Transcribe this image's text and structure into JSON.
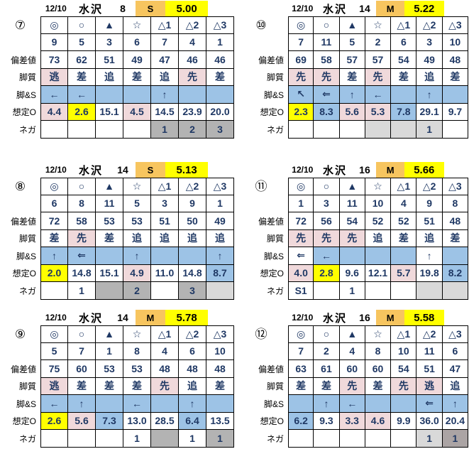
{
  "colors": {
    "class_cell_orange": "#F7C55F",
    "value_cell_yellow": "#FFFF00",
    "front_runner_pink": "#F0D9DB",
    "arrow_row_blue": "#9DC3E6",
    "nega_gray_medium": "#B3B3B3",
    "nega_gray_light": "#D9D9D9",
    "nega_gray_dark": "#ABA4A4",
    "odds_text_navy": "#1F3864"
  },
  "row_labels": [
    "偏差値",
    "脚質",
    "脚&S",
    "想定O",
    "ネガ"
  ],
  "symbols": [
    "◎",
    "○",
    "▲",
    "☆",
    "△1",
    "△2",
    "△3"
  ],
  "blocks": [
    {
      "badge": "⑦",
      "header": {
        "date": "12/10",
        "track": "水沢",
        "race": "8",
        "class": "S",
        "value": "5.00"
      },
      "num": [
        "9",
        "5",
        "3",
        "6",
        "7",
        "4",
        "1"
      ],
      "dev": [
        "73",
        "62",
        "51",
        "49",
        "47",
        "46",
        "46"
      ],
      "leg": [
        {
          "t": "逃",
          "bg": "pink"
        },
        {
          "t": "差",
          "bg": ""
        },
        {
          "t": "追",
          "bg": ""
        },
        {
          "t": "差",
          "bg": ""
        },
        {
          "t": "追",
          "bg": ""
        },
        {
          "t": "先",
          "bg": "pink"
        },
        {
          "t": "差",
          "bg": ""
        }
      ],
      "arr": [
        {
          "t": "←",
          "bg": "blue"
        },
        {
          "t": "←",
          "bg": "blue"
        },
        {
          "t": "",
          "bg": "blue"
        },
        {
          "t": "",
          "bg": "blue"
        },
        {
          "t": "↑",
          "bg": "blue"
        },
        {
          "t": "",
          "bg": "blue"
        },
        {
          "t": "",
          "bg": "blue"
        }
      ],
      "odds": [
        {
          "t": "4.4",
          "bg": "pink"
        },
        {
          "t": "2.6",
          "bg": "yellow"
        },
        {
          "t": "15.1",
          "bg": ""
        },
        {
          "t": "4.5",
          "bg": "pink"
        },
        {
          "t": "14.5",
          "bg": ""
        },
        {
          "t": "23.9",
          "bg": ""
        },
        {
          "t": "20.0",
          "bg": ""
        }
      ],
      "nega": [
        {
          "t": "",
          "bg": ""
        },
        {
          "t": "",
          "bg": ""
        },
        {
          "t": "",
          "bg": ""
        },
        {
          "t": "",
          "bg": ""
        },
        {
          "t": "1",
          "bg": "gm"
        },
        {
          "t": "2",
          "bg": "gm"
        },
        {
          "t": "3",
          "bg": "gm"
        }
      ]
    },
    {
      "badge": "⑩",
      "header": {
        "date": "12/10",
        "track": "水沢",
        "race": "14",
        "class": "M",
        "value": "5.22"
      },
      "num": [
        "7",
        "11",
        "5",
        "2",
        "6",
        "3",
        "10"
      ],
      "dev": [
        "69",
        "58",
        "57",
        "57",
        "54",
        "49",
        "48"
      ],
      "leg": [
        {
          "t": "先",
          "bg": "pink"
        },
        {
          "t": "先",
          "bg": "pink"
        },
        {
          "t": "差",
          "bg": ""
        },
        {
          "t": "先",
          "bg": "pink"
        },
        {
          "t": "差",
          "bg": ""
        },
        {
          "t": "追",
          "bg": ""
        },
        {
          "t": "差",
          "bg": ""
        }
      ],
      "arr": [
        {
          "t": "↖",
          "bg": "blue"
        },
        {
          "t": "⇐",
          "bg": "blue"
        },
        {
          "t": "↑",
          "bg": "blue"
        },
        {
          "t": "←",
          "bg": "blue"
        },
        {
          "t": "",
          "bg": "blue"
        },
        {
          "t": "↑",
          "bg": "blue"
        },
        {
          "t": "",
          "bg": "blue"
        }
      ],
      "odds": [
        {
          "t": "2.3",
          "bg": "yellow"
        },
        {
          "t": "8.3",
          "bg": "blue"
        },
        {
          "t": "5.6",
          "bg": "pink"
        },
        {
          "t": "5.3",
          "bg": "pink"
        },
        {
          "t": "7.8",
          "bg": "blue"
        },
        {
          "t": "29.1",
          "bg": ""
        },
        {
          "t": "9.7",
          "bg": ""
        }
      ],
      "nega": [
        {
          "t": "",
          "bg": ""
        },
        {
          "t": "",
          "bg": ""
        },
        {
          "t": "",
          "bg": ""
        },
        {
          "t": "",
          "bg": "gl"
        },
        {
          "t": "",
          "bg": "gl"
        },
        {
          "t": "1",
          "bg": "gl"
        },
        {
          "t": "",
          "bg": ""
        }
      ]
    },
    {
      "badge": "⑧",
      "header": {
        "date": "12/10",
        "track": "水沢",
        "race": "14",
        "class": "S",
        "value": "5.13"
      },
      "num": [
        "6",
        "8",
        "11",
        "5",
        "3",
        "9",
        "1"
      ],
      "dev": [
        "72",
        "58",
        "53",
        "53",
        "51",
        "50",
        "49"
      ],
      "leg": [
        {
          "t": "差",
          "bg": ""
        },
        {
          "t": "先",
          "bg": "pink"
        },
        {
          "t": "差",
          "bg": ""
        },
        {
          "t": "追",
          "bg": ""
        },
        {
          "t": "追",
          "bg": ""
        },
        {
          "t": "追",
          "bg": ""
        },
        {
          "t": "追",
          "bg": ""
        }
      ],
      "arr": [
        {
          "t": "↑",
          "bg": "blue"
        },
        {
          "t": "⇐",
          "bg": "blue"
        },
        {
          "t": "",
          "bg": "blue"
        },
        {
          "t": "↑",
          "bg": "blue"
        },
        {
          "t": "",
          "bg": "blue"
        },
        {
          "t": "",
          "bg": "blue"
        },
        {
          "t": "↑",
          "bg": "blue"
        }
      ],
      "odds": [
        {
          "t": "2.0",
          "bg": "yellow"
        },
        {
          "t": "14.8",
          "bg": ""
        },
        {
          "t": "15.1",
          "bg": ""
        },
        {
          "t": "4.9",
          "bg": "pink"
        },
        {
          "t": "11.0",
          "bg": ""
        },
        {
          "t": "14.8",
          "bg": ""
        },
        {
          "t": "8.7",
          "bg": "blue"
        }
      ],
      "nega": [
        {
          "t": "",
          "bg": ""
        },
        {
          "t": "1",
          "bg": ""
        },
        {
          "t": "",
          "bg": "gm"
        },
        {
          "t": "2",
          "bg": "gm"
        },
        {
          "t": "",
          "bg": ""
        },
        {
          "t": "3",
          "bg": "gm"
        },
        {
          "t": "",
          "bg": "gl"
        }
      ]
    },
    {
      "badge": "⑪",
      "header": {
        "date": "12/10",
        "track": "水沢",
        "race": "16",
        "class": "M",
        "value": "5.66"
      },
      "num": [
        "1",
        "3",
        "11",
        "10",
        "4",
        "9",
        "8"
      ],
      "dev": [
        "72",
        "56",
        "54",
        "52",
        "52",
        "51",
        "48"
      ],
      "leg": [
        {
          "t": "先",
          "bg": "pink"
        },
        {
          "t": "先",
          "bg": "pink"
        },
        {
          "t": "先",
          "bg": "pink"
        },
        {
          "t": "追",
          "bg": ""
        },
        {
          "t": "差",
          "bg": ""
        },
        {
          "t": "追",
          "bg": ""
        },
        {
          "t": "差",
          "bg": ""
        }
      ],
      "arr": [
        {
          "t": "⇐",
          "bg": ""
        },
        {
          "t": "←",
          "bg": "blue"
        },
        {
          "t": "",
          "bg": "blue"
        },
        {
          "t": "",
          "bg": "blue"
        },
        {
          "t": "",
          "bg": "blue"
        },
        {
          "t": "↑",
          "bg": ""
        },
        {
          "t": "",
          "bg": "blue"
        }
      ],
      "odds": [
        {
          "t": "4.0",
          "bg": "pink"
        },
        {
          "t": "2.8",
          "bg": "yellow"
        },
        {
          "t": "9.6",
          "bg": ""
        },
        {
          "t": "12.1",
          "bg": ""
        },
        {
          "t": "5.7",
          "bg": "pink"
        },
        {
          "t": "19.8",
          "bg": ""
        },
        {
          "t": "8.2",
          "bg": "blue"
        }
      ],
      "nega": [
        {
          "t": "S1",
          "bg": ""
        },
        {
          "t": "",
          "bg": ""
        },
        {
          "t": "1",
          "bg": ""
        },
        {
          "t": "",
          "bg": ""
        },
        {
          "t": "",
          "bg": ""
        },
        {
          "t": "",
          "bg": "gl"
        },
        {
          "t": "",
          "bg": "gl"
        }
      ]
    },
    {
      "badge": "⑨",
      "header": {
        "date": "12/10",
        "track": "水沢",
        "race": "14",
        "class": "M",
        "value": "5.78"
      },
      "num": [
        "5",
        "7",
        "1",
        "8",
        "4",
        "6",
        "10"
      ],
      "dev": [
        "75",
        "60",
        "53",
        "53",
        "48",
        "48",
        "48"
      ],
      "leg": [
        {
          "t": "逃",
          "bg": "pink"
        },
        {
          "t": "差",
          "bg": ""
        },
        {
          "t": "差",
          "bg": ""
        },
        {
          "t": "差",
          "bg": ""
        },
        {
          "t": "先",
          "bg": "pink"
        },
        {
          "t": "追",
          "bg": ""
        },
        {
          "t": "差",
          "bg": ""
        }
      ],
      "arr": [
        {
          "t": "←",
          "bg": "blue"
        },
        {
          "t": "↑",
          "bg": "blue"
        },
        {
          "t": "",
          "bg": "blue"
        },
        {
          "t": "←",
          "bg": "blue"
        },
        {
          "t": "",
          "bg": "blue"
        },
        {
          "t": "↑",
          "bg": "blue"
        },
        {
          "t": "",
          "bg": "blue"
        }
      ],
      "odds": [
        {
          "t": "2.6",
          "bg": "yellow"
        },
        {
          "t": "5.6",
          "bg": "pink"
        },
        {
          "t": "7.3",
          "bg": "blue"
        },
        {
          "t": "13.0",
          "bg": ""
        },
        {
          "t": "28.5",
          "bg": ""
        },
        {
          "t": "6.4",
          "bg": "blue"
        },
        {
          "t": "13.5",
          "bg": ""
        }
      ],
      "nega": [
        {
          "t": "",
          "bg": ""
        },
        {
          "t": "",
          "bg": ""
        },
        {
          "t": "",
          "bg": ""
        },
        {
          "t": "1",
          "bg": ""
        },
        {
          "t": "",
          "bg": "gm"
        },
        {
          "t": "1",
          "bg": ""
        },
        {
          "t": "1",
          "bg": "gm"
        }
      ]
    },
    {
      "badge": "⑫",
      "header": {
        "date": "12/10",
        "track": "水沢",
        "race": "16",
        "class": "M",
        "value": "5.58"
      },
      "num": [
        "7",
        "2",
        "4",
        "8",
        "10",
        "11",
        "6"
      ],
      "dev": [
        "63",
        "61",
        "60",
        "60",
        "54",
        "51",
        "47"
      ],
      "leg": [
        {
          "t": "差",
          "bg": ""
        },
        {
          "t": "差",
          "bg": ""
        },
        {
          "t": "先",
          "bg": "pink"
        },
        {
          "t": "差",
          "bg": ""
        },
        {
          "t": "先",
          "bg": "pink"
        },
        {
          "t": "逃",
          "bg": "pink"
        },
        {
          "t": "追",
          "bg": ""
        }
      ],
      "arr": [
        {
          "t": "",
          "bg": "blue"
        },
        {
          "t": "↑",
          "bg": "blue"
        },
        {
          "t": "←",
          "bg": "blue"
        },
        {
          "t": "",
          "bg": "blue"
        },
        {
          "t": "",
          "bg": "blue"
        },
        {
          "t": "⇐",
          "bg": "blue"
        },
        {
          "t": "↑",
          "bg": "blue"
        }
      ],
      "odds": [
        {
          "t": "6.2",
          "bg": "blue"
        },
        {
          "t": "9.3",
          "bg": ""
        },
        {
          "t": "3.3",
          "bg": "pink"
        },
        {
          "t": "4.6",
          "bg": "pink"
        },
        {
          "t": "9.9",
          "bg": ""
        },
        {
          "t": "36.0",
          "bg": ""
        },
        {
          "t": "20.4",
          "bg": ""
        }
      ],
      "nega": [
        {
          "t": "",
          "bg": ""
        },
        {
          "t": "",
          "bg": ""
        },
        {
          "t": "",
          "bg": ""
        },
        {
          "t": "",
          "bg": ""
        },
        {
          "t": "",
          "bg": ""
        },
        {
          "t": "1",
          "bg": "gl"
        },
        {
          "t": "1",
          "bg": "gd"
        }
      ]
    }
  ]
}
